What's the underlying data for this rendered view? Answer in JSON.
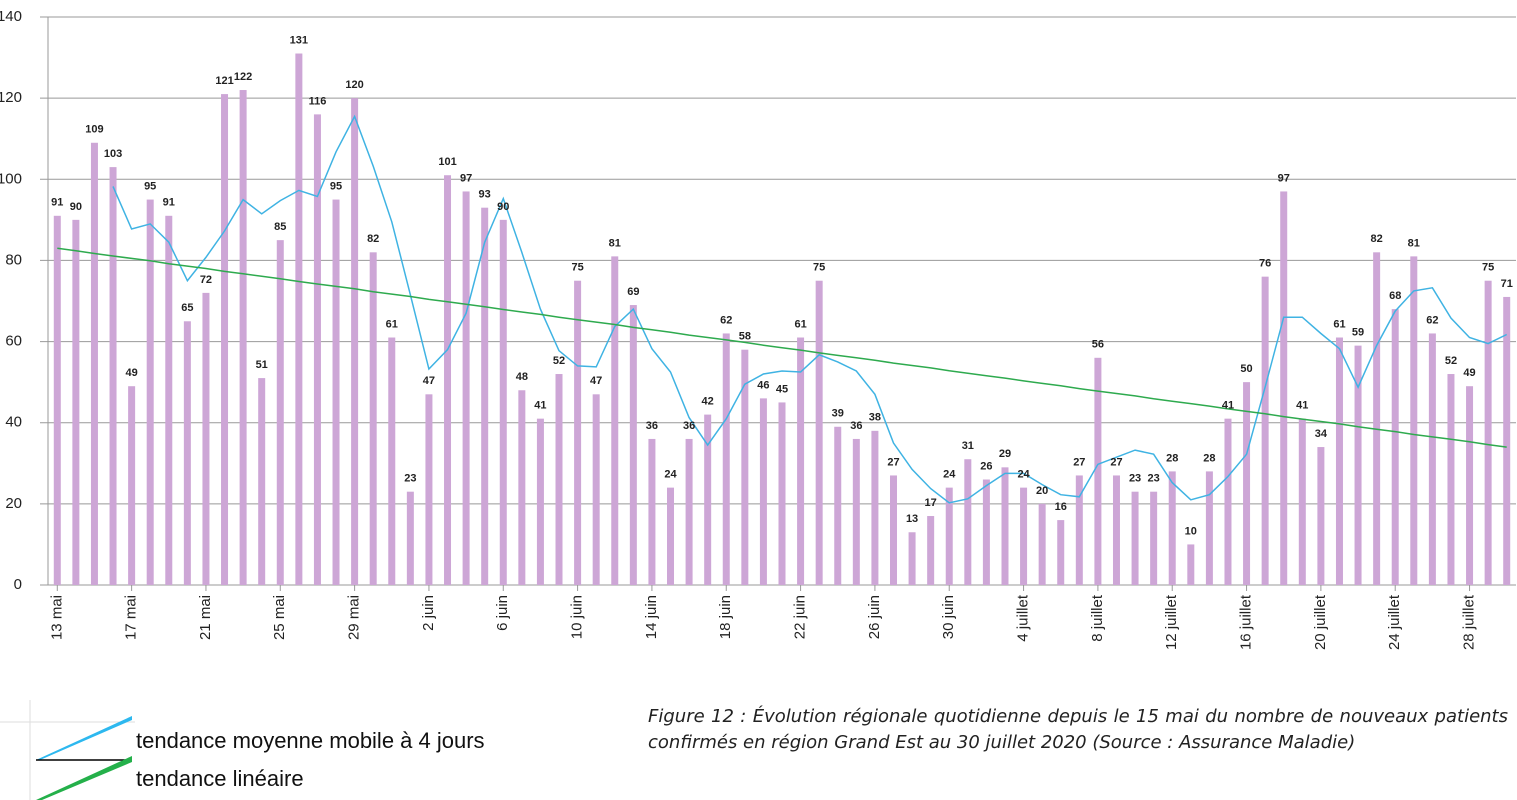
{
  "chart_data": {
    "type": "bar",
    "categories": [
      "13 mai",
      null,
      null,
      null,
      "17 mai",
      null,
      null,
      null,
      "21 mai",
      null,
      null,
      null,
      "25 mai",
      null,
      null,
      null,
      "29 mai",
      null,
      null,
      null,
      "2 juin",
      null,
      null,
      null,
      "6 juin",
      null,
      null,
      null,
      "10 juin",
      null,
      null,
      null,
      "14 juin",
      null,
      null,
      null,
      "18 juin",
      null,
      null,
      null,
      "22 juin",
      null,
      null,
      null,
      "26 juin",
      null,
      null,
      null,
      "30 juin",
      null,
      null,
      null,
      "4 juillet",
      null,
      null,
      null,
      "8 juillet",
      null,
      null,
      null,
      "12 juillet",
      null,
      null,
      null,
      "16 juillet",
      null,
      null,
      null,
      "20 juillet",
      null,
      null,
      null,
      "24 juillet",
      null,
      null,
      null,
      "28 juillet",
      null,
      null
    ],
    "values": [
      91,
      90,
      109,
      103,
      49,
      95,
      91,
      65,
      72,
      121,
      122,
      51,
      85,
      131,
      116,
      95,
      120,
      82,
      61,
      23,
      47,
      101,
      97,
      93,
      90,
      48,
      41,
      52,
      75,
      47,
      81,
      69,
      36,
      24,
      36,
      42,
      62,
      58,
      46,
      45,
      61,
      75,
      39,
      36,
      38,
      27,
      13,
      17,
      24,
      31,
      26,
      29,
      24,
      20,
      16,
      27,
      56,
      27,
      23,
      23,
      28,
      10,
      28,
      41,
      50,
      76,
      97,
      41,
      34,
      61,
      59,
      82,
      68,
      81,
      62,
      52,
      49,
      75,
      71
    ],
    "color": "#cda6d6",
    "series": [
      {
        "name": "tendance moyenne mobile à 4 jours",
        "color": "#3fb3e3",
        "values": [
          null,
          null,
          null,
          98.25,
          87.75,
          89,
          84.5,
          75,
          80.75,
          87.25,
          95,
          91.5,
          94.75,
          97.25,
          95.75,
          106.75,
          115.5,
          103.25,
          89.5,
          71.5,
          53.25,
          58,
          67,
          84.5,
          95.25,
          82,
          68,
          57.75,
          54,
          53.75,
          63.75,
          68,
          58.25,
          52.5,
          41.25,
          34.5,
          41,
          49.5,
          52,
          52.75,
          52.5,
          56.75,
          55,
          52.75,
          47,
          35,
          28.5,
          23.75,
          20.25,
          21.25,
          24.5,
          27.5,
          27.5,
          24.75,
          22.25,
          21.75,
          29.75,
          31.5,
          33.25,
          32.25,
          25.25,
          21,
          22.25,
          26.75,
          32.25,
          48.75,
          66,
          66,
          62,
          58.25,
          48.75,
          59,
          67.5,
          72.5,
          73.25,
          65.75,
          61,
          59.5,
          61.75
        ]
      },
      {
        "name": "tendance linéaire",
        "color": "#2eaa4e",
        "values": [
          83,
          82.4,
          81.7,
          81.1,
          80.5,
          79.9,
          79.2,
          78.6,
          78.0,
          77.3,
          76.7,
          76.1,
          75.5,
          74.8,
          74.2,
          73.6,
          73.0,
          72.3,
          71.7,
          71.1,
          70.4,
          69.8,
          69.2,
          68.6,
          67.9,
          67.3,
          66.7,
          66.0,
          65.4,
          64.8,
          64.2,
          63.5,
          62.9,
          62.3,
          61.6,
          61.0,
          60.4,
          59.8,
          59.1,
          58.5,
          57.9,
          57.2,
          56.6,
          56.0,
          55.4,
          54.7,
          54.1,
          53.5,
          52.8,
          52.2,
          51.6,
          51.0,
          50.3,
          49.7,
          49.1,
          48.4,
          47.8,
          47.2,
          46.6,
          45.9,
          45.3,
          44.7,
          44.1,
          43.4,
          42.8,
          42.2,
          41.5,
          40.9,
          40.3,
          39.7,
          39.0,
          38.4,
          37.8,
          37.1,
          36.5,
          35.9,
          35.3,
          34.6,
          34.0
        ]
      }
    ],
    "ylim": [
      0,
      140
    ],
    "yticks": [
      0,
      20,
      40,
      60,
      80,
      100,
      120,
      140
    ],
    "grid": true,
    "caption": "Figure 12 : Évolution régionale quotidienne depuis le 15 mai du nombre de nouveaux patients confirmés en région Grand Est au 30 juillet 2020 (Source : Assurance Maladie)"
  }
}
